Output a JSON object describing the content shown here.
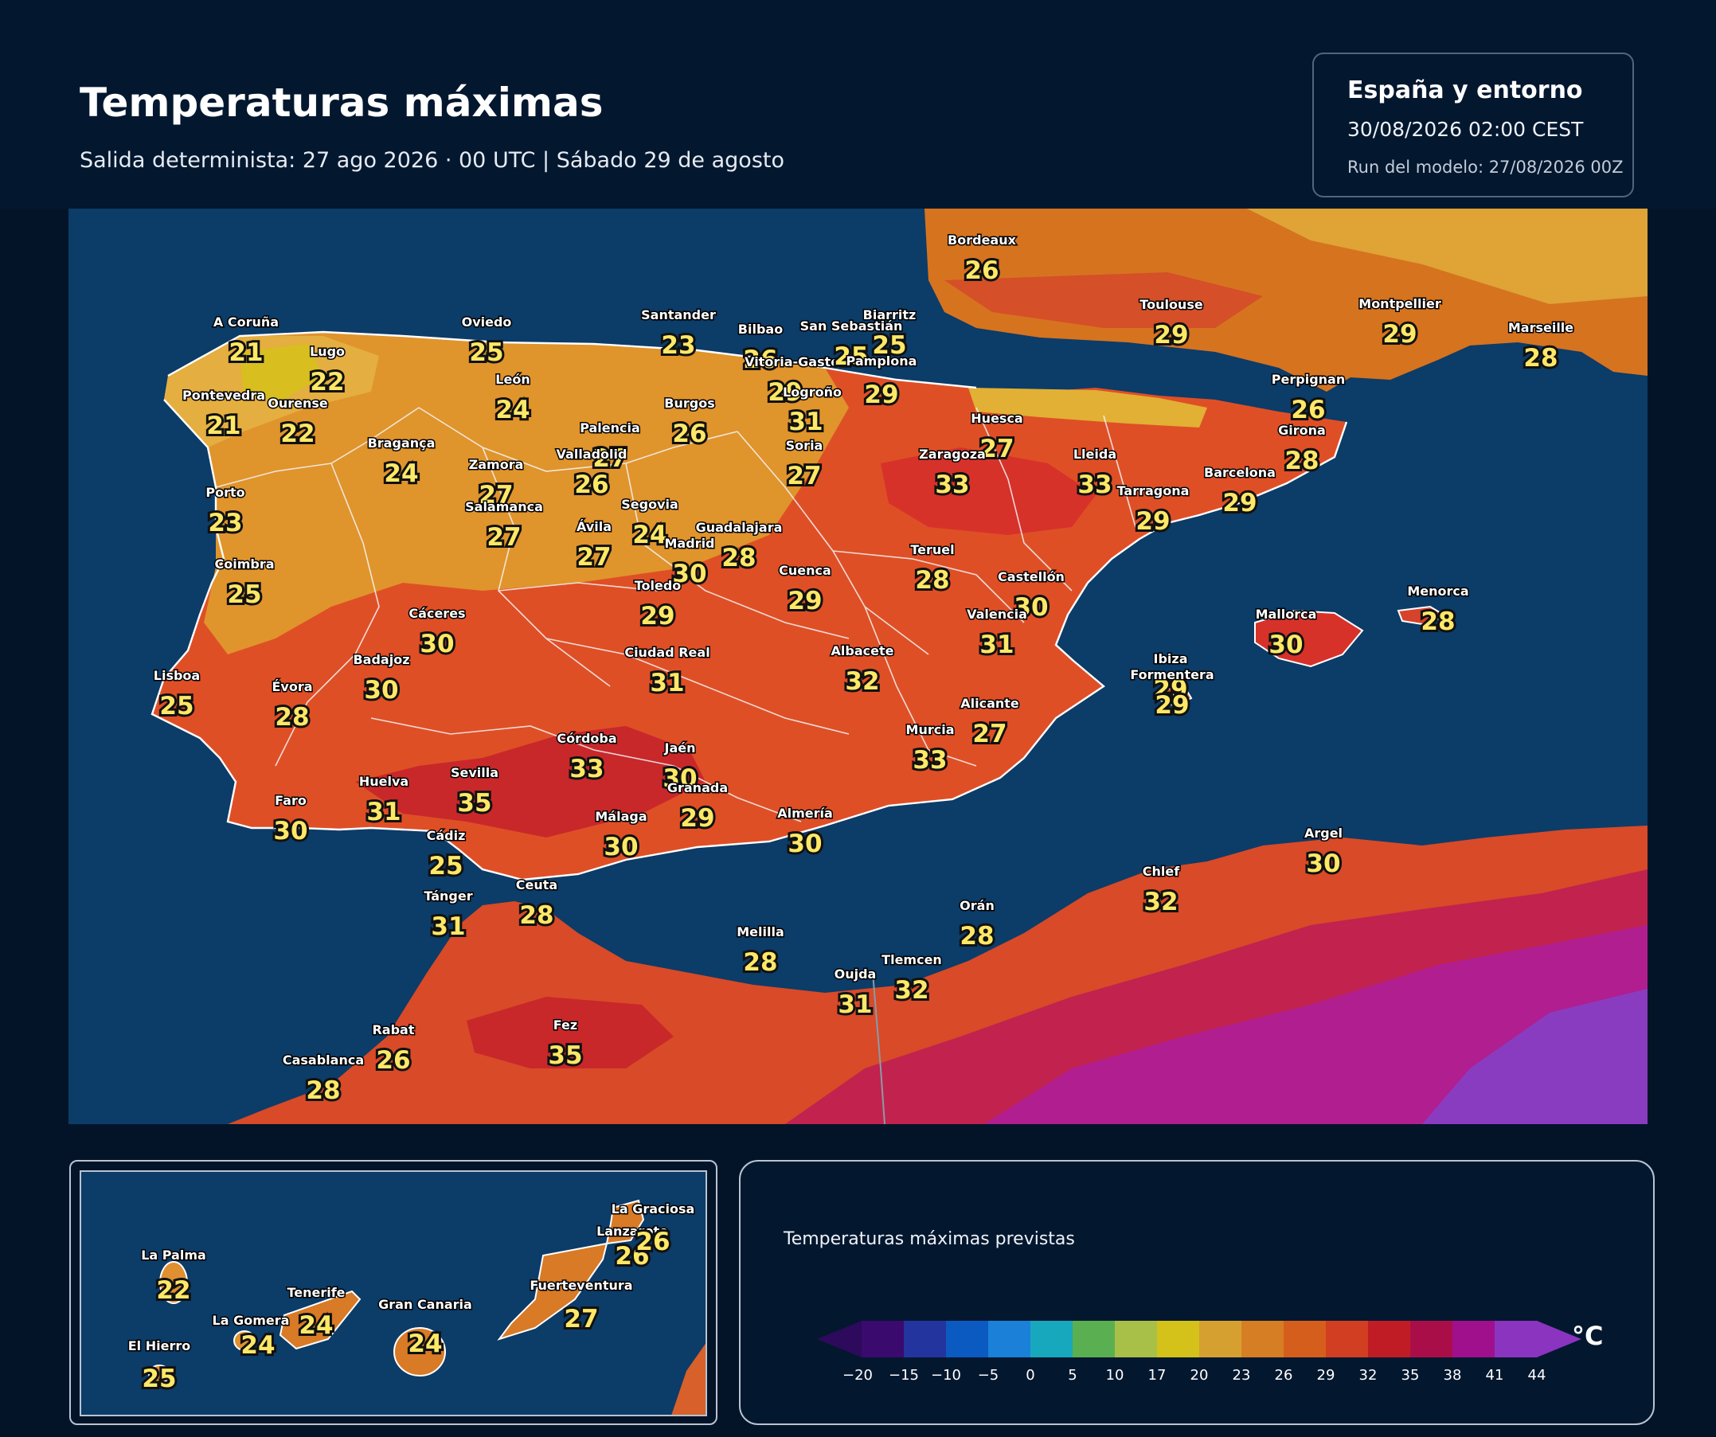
{
  "header": {
    "title": "Temperaturas máximas",
    "subtitle": "Salida determinista: 27 ago 2026 · 00 UTC  |  Sábado 29 de agosto"
  },
  "info_box": {
    "region": "España y entorno",
    "valid_time": "30/08/2026  02:00 CEST",
    "model_run": "Run del modelo: 27/08/2026 00Z"
  },
  "colors": {
    "background": "#041428",
    "sea": "#0c3c68",
    "value_text": "#ffe866"
  },
  "cities": [
    {
      "name": "A Coruña",
      "value": "21"
    },
    {
      "name": "Lugo",
      "value": "22"
    },
    {
      "name": "Pontevedra",
      "value": "21"
    },
    {
      "name": "Ourense",
      "value": "22"
    },
    {
      "name": "Oviedo",
      "value": "25"
    },
    {
      "name": "León",
      "value": "24"
    },
    {
      "name": "Santander",
      "value": "23"
    },
    {
      "name": "Bilbao",
      "value": "26"
    },
    {
      "name": "Vitoria-Gasteiz",
      "value": "29"
    },
    {
      "name": "San Sebastián",
      "value": "25"
    },
    {
      "name": "Biarritz",
      "value": "25"
    },
    {
      "name": "Pamplona",
      "value": "29"
    },
    {
      "name": "Logroño",
      "value": "31"
    },
    {
      "name": "Bordeaux",
      "value": "26"
    },
    {
      "name": "Toulouse",
      "value": "29"
    },
    {
      "name": "Montpellier",
      "value": "29"
    },
    {
      "name": "Marseille",
      "value": "28"
    },
    {
      "name": "Perpignan",
      "value": "26"
    },
    {
      "name": "Girona",
      "value": "28"
    },
    {
      "name": "Bragança",
      "value": "24"
    },
    {
      "name": "Zamora",
      "value": "27"
    },
    {
      "name": "Palencia",
      "value": "27"
    },
    {
      "name": "Valladolid",
      "value": "26"
    },
    {
      "name": "Burgos",
      "value": "26"
    },
    {
      "name": "Soria",
      "value": "27"
    },
    {
      "name": "Huesca",
      "value": "27"
    },
    {
      "name": "Zaragoza",
      "value": "33"
    },
    {
      "name": "Lleida",
      "value": "33"
    },
    {
      "name": "Barcelona",
      "value": "29"
    },
    {
      "name": "Tarragona",
      "value": "29"
    },
    {
      "name": "Porto",
      "value": "23"
    },
    {
      "name": "Salamanca",
      "value": "27"
    },
    {
      "name": "Segovia",
      "value": "24"
    },
    {
      "name": "Ávila",
      "value": "27"
    },
    {
      "name": "Madrid",
      "value": "30"
    },
    {
      "name": "Guadalajara",
      "value": "28"
    },
    {
      "name": "Coimbra",
      "value": "25"
    },
    {
      "name": "Teruel",
      "value": "28"
    },
    {
      "name": "Cuenca",
      "value": "29"
    },
    {
      "name": "Castellón",
      "value": "30"
    },
    {
      "name": "Toledo",
      "value": "29"
    },
    {
      "name": "Valencia",
      "value": "31"
    },
    {
      "name": "Cáceres",
      "value": "30"
    },
    {
      "name": "Ciudad Real",
      "value": "31"
    },
    {
      "name": "Albacete",
      "value": "32"
    },
    {
      "name": "Mallorca",
      "value": "30"
    },
    {
      "name": "Menorca",
      "value": "28"
    },
    {
      "name": "Ibiza",
      "value": "29"
    },
    {
      "name": "Formentera",
      "value": "29"
    },
    {
      "name": "Lisboa",
      "value": "25"
    },
    {
      "name": "Badajoz",
      "value": "30"
    },
    {
      "name": "Évora",
      "value": "28"
    },
    {
      "name": "Alicante",
      "value": "27"
    },
    {
      "name": "Murcia",
      "value": "33"
    },
    {
      "name": "Córdoba",
      "value": "33"
    },
    {
      "name": "Jaén",
      "value": "30"
    },
    {
      "name": "Granada",
      "value": "29"
    },
    {
      "name": "Huelva",
      "value": "31"
    },
    {
      "name": "Sevilla",
      "value": "35"
    },
    {
      "name": "Faro",
      "value": "30"
    },
    {
      "name": "Málaga",
      "value": "30"
    },
    {
      "name": "Almería",
      "value": "30"
    },
    {
      "name": "Cádiz",
      "value": "25"
    },
    {
      "name": "Tánger",
      "value": "31"
    },
    {
      "name": "Ceuta",
      "value": "28"
    },
    {
      "name": "Melilla",
      "value": "28"
    },
    {
      "name": "Orán",
      "value": "28"
    },
    {
      "name": "Chlef",
      "value": "32"
    },
    {
      "name": "Argel",
      "value": "30"
    },
    {
      "name": "Oujda",
      "value": "31"
    },
    {
      "name": "Tlemcen",
      "value": "32"
    },
    {
      "name": "Rabat",
      "value": "26"
    },
    {
      "name": "Casablanca",
      "value": "28"
    },
    {
      "name": "Fez",
      "value": "35"
    }
  ],
  "canarias": [
    {
      "name": "La Palma",
      "value": "22"
    },
    {
      "name": "El Hierro",
      "value": "25"
    },
    {
      "name": "La Gomera",
      "value": "24"
    },
    {
      "name": "Tenerife",
      "value": "24"
    },
    {
      "name": "Gran Canaria",
      "value": "24"
    },
    {
      "name": "Fuerteventura",
      "value": "27"
    },
    {
      "name": "Lanzarote",
      "value": "26"
    },
    {
      "name": "La Graciosa",
      "value": "26"
    }
  ],
  "legend": {
    "title": "Temperaturas máximas previstas",
    "unit": "°C",
    "ticks": [
      "−20",
      "−15",
      "−10",
      "−5",
      "0",
      "5",
      "10",
      "17",
      "20",
      "23",
      "26",
      "29",
      "32",
      "35",
      "38",
      "41",
      "44"
    ],
    "colors": [
      "#3a0a6e",
      "#24349e",
      "#0a5ac2",
      "#1a80d8",
      "#18a8be",
      "#5ab050",
      "#a8bf48",
      "#d4c21a",
      "#d6a030",
      "#d67e24",
      "#d65e1c",
      "#d23e22",
      "#c01c26",
      "#aa0e48",
      "#a0108c",
      "#8a34c0"
    ],
    "low_arrow_color": "#2d0a5c",
    "high_arrow_color": "#8a34c0"
  }
}
